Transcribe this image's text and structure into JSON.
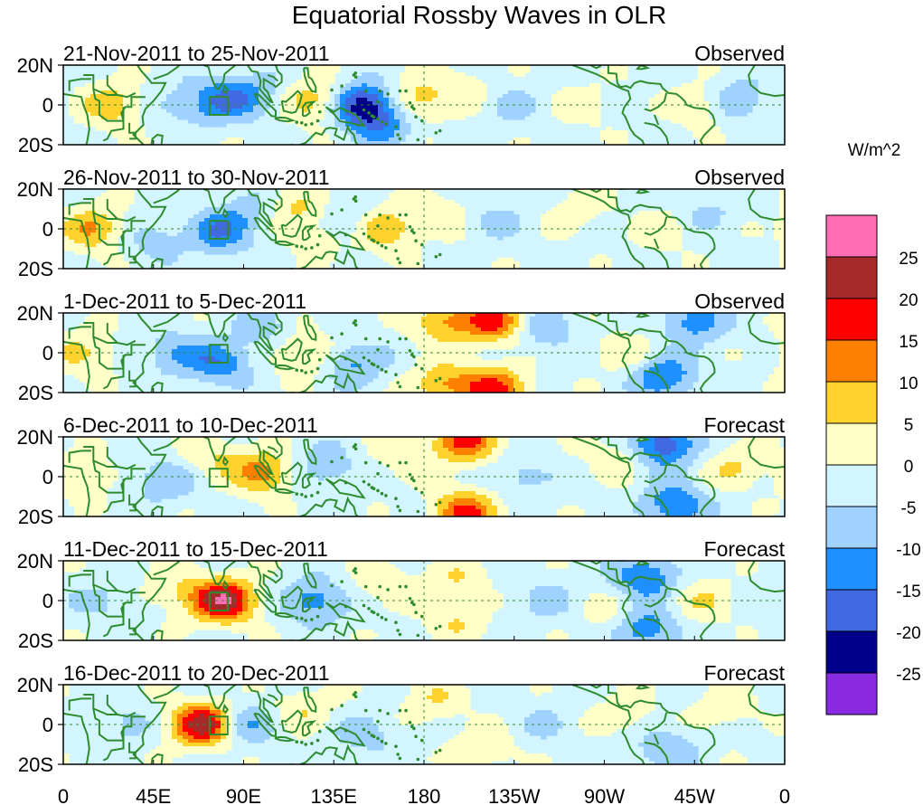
{
  "title": "Equatorial Rossby Waves in OLR",
  "units": "W/m^2",
  "lat_labels": [
    "20N",
    "0",
    "20S"
  ],
  "lon_labels": [
    "0",
    "45E",
    "90E",
    "135E",
    "180",
    "135W",
    "90W",
    "45W",
    "0"
  ],
  "panels": [
    {
      "period": "21-Nov-2011 to 25-Nov-2011",
      "status": "Observed"
    },
    {
      "period": "26-Nov-2011 to 30-Nov-2011",
      "status": "Observed"
    },
    {
      "period": "1-Dec-2011 to 5-Dec-2011",
      "status": "Observed"
    },
    {
      "period": "6-Dec-2011 to 10-Dec-2011",
      "status": "Forecast"
    },
    {
      "period": "11-Dec-2011 to 15-Dec-2011",
      "status": "Forecast"
    },
    {
      "period": "16-Dec-2011 to 20-Dec-2011",
      "status": "Forecast"
    }
  ],
  "colorbar": {
    "labels": [
      "25",
      "20",
      "15",
      "10",
      "5",
      "0",
      "-5",
      "-10",
      "-15",
      "-20",
      "-25"
    ],
    "colors_top_to_bottom": [
      "#ff6eb4",
      "#a52a2a",
      "#ff0000",
      "#ff7f00",
      "#ffd22e",
      "#ffffc8",
      "#d2f5ff",
      "#a0d2ff",
      "#1e90ff",
      "#4169e1",
      "#00008b",
      "#8a2be2"
    ]
  },
  "anomaly_features": [
    [
      {
        "lon": 25,
        "lat": 0,
        "v": 10
      },
      {
        "lon": 55,
        "lat": 0,
        "v": -5
      },
      {
        "lon": 78,
        "lat": 2,
        "v": -12
      },
      {
        "lon": 95,
        "lat": 5,
        "v": -8
      },
      {
        "lon": 125,
        "lat": 2,
        "v": 10
      },
      {
        "lon": 150,
        "lat": 0,
        "v": -22
      },
      {
        "lon": 160,
        "lat": -10,
        "v": -10
      },
      {
        "lon": 175,
        "lat": 2,
        "v": 10
      },
      {
        "lon": 200,
        "lat": 8,
        "v": 5
      },
      {
        "lon": 222,
        "lat": 0,
        "v": -5
      },
      {
        "lon": 260,
        "lat": 0,
        "v": 4
      },
      {
        "lon": 320,
        "lat": 0,
        "v": 8
      },
      {
        "lon": 335,
        "lat": 2,
        "v": -10
      }
    ],
    [
      {
        "lon": 15,
        "lat": 0,
        "v": 12
      },
      {
        "lon": 45,
        "lat": -5,
        "v": -6
      },
      {
        "lon": 78,
        "lat": -2,
        "v": -12
      },
      {
        "lon": 92,
        "lat": 8,
        "v": -6
      },
      {
        "lon": 115,
        "lat": 10,
        "v": 7
      },
      {
        "lon": 130,
        "lat": -2,
        "v": 8
      },
      {
        "lon": 140,
        "lat": 2,
        "v": -10
      },
      {
        "lon": 160,
        "lat": 0,
        "v": 12
      },
      {
        "lon": 190,
        "lat": 8,
        "v": 5
      },
      {
        "lon": 215,
        "lat": 5,
        "v": -5
      },
      {
        "lon": 255,
        "lat": 10,
        "v": 4
      },
      {
        "lon": 300,
        "lat": 0,
        "v": 5
      },
      {
        "lon": 320,
        "lat": 8,
        "v": -5
      }
    ],
    [
      {
        "lon": 10,
        "lat": 0,
        "v": 8
      },
      {
        "lon": 55,
        "lat": 0,
        "v": -8
      },
      {
        "lon": 78,
        "lat": -5,
        "v": -12
      },
      {
        "lon": 100,
        "lat": 12,
        "v": -6
      },
      {
        "lon": 120,
        "lat": 0,
        "v": 9
      },
      {
        "lon": 145,
        "lat": -5,
        "v": -10
      },
      {
        "lon": 190,
        "lat": 16,
        "v": 12
      },
      {
        "lon": 190,
        "lat": -16,
        "v": 12
      },
      {
        "lon": 215,
        "lat": 16,
        "v": 18
      },
      {
        "lon": 215,
        "lat": -18,
        "v": 18
      },
      {
        "lon": 240,
        "lat": 12,
        "v": -8
      },
      {
        "lon": 280,
        "lat": 0,
        "v": 5
      },
      {
        "lon": 300,
        "lat": -12,
        "v": -14
      },
      {
        "lon": 315,
        "lat": 16,
        "v": -12
      }
    ],
    [
      {
        "lon": 10,
        "lat": 0,
        "v": 6
      },
      {
        "lon": 50,
        "lat": -2,
        "v": -8
      },
      {
        "lon": 75,
        "lat": 10,
        "v": 6
      },
      {
        "lon": 100,
        "lat": 2,
        "v": 14
      },
      {
        "lon": 130,
        "lat": 5,
        "v": -8
      },
      {
        "lon": 170,
        "lat": 10,
        "v": 5
      },
      {
        "lon": 200,
        "lat": 18,
        "v": 18
      },
      {
        "lon": 200,
        "lat": -18,
        "v": 18
      },
      {
        "lon": 230,
        "lat": 0,
        "v": -6
      },
      {
        "lon": 275,
        "lat": 10,
        "v": 5
      },
      {
        "lon": 300,
        "lat": 16,
        "v": -18
      },
      {
        "lon": 305,
        "lat": -14,
        "v": -14
      },
      {
        "lon": 335,
        "lat": 5,
        "v": 7
      }
    ],
    [
      {
        "lon": 20,
        "lat": 0,
        "v": -5
      },
      {
        "lon": 55,
        "lat": 5,
        "v": 6
      },
      {
        "lon": 80,
        "lat": 0,
        "v": 26
      },
      {
        "lon": 125,
        "lat": 0,
        "v": -12
      },
      {
        "lon": 160,
        "lat": 8,
        "v": 5
      },
      {
        "lon": 195,
        "lat": 10,
        "v": 6
      },
      {
        "lon": 195,
        "lat": -10,
        "v": 6
      },
      {
        "lon": 240,
        "lat": 0,
        "v": -5
      },
      {
        "lon": 275,
        "lat": -8,
        "v": 5
      },
      {
        "lon": 290,
        "lat": 12,
        "v": -14
      },
      {
        "lon": 290,
        "lat": -14,
        "v": -14
      },
      {
        "lon": 320,
        "lat": 0,
        "v": 6
      }
    ],
    [
      {
        "lon": 30,
        "lat": 0,
        "v": -5
      },
      {
        "lon": 70,
        "lat": 0,
        "v": 26
      },
      {
        "lon": 90,
        "lat": 0,
        "v": -10
      },
      {
        "lon": 120,
        "lat": 8,
        "v": 6
      },
      {
        "lon": 150,
        "lat": -5,
        "v": -6
      },
      {
        "lon": 185,
        "lat": 12,
        "v": 6
      },
      {
        "lon": 210,
        "lat": -12,
        "v": 6
      },
      {
        "lon": 240,
        "lat": 0,
        "v": -4
      },
      {
        "lon": 280,
        "lat": 5,
        "v": 5
      },
      {
        "lon": 300,
        "lat": -12,
        "v": -8
      },
      {
        "lon": 330,
        "lat": 8,
        "v": 5
      }
    ]
  ]
}
